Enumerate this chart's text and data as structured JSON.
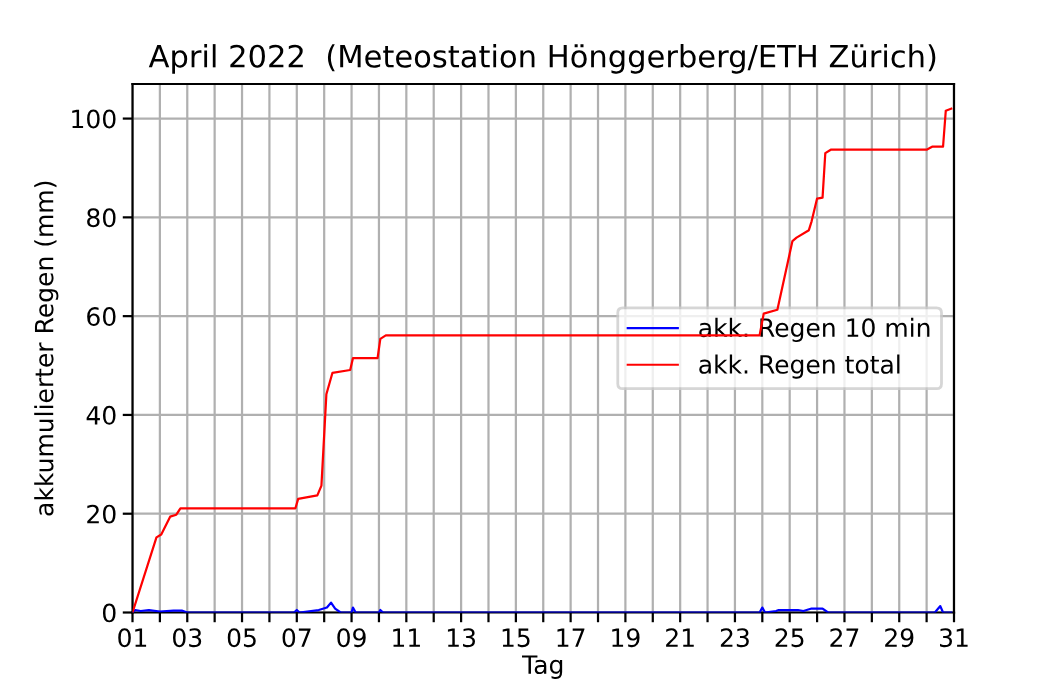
{
  "chart_data": {
    "type": "line",
    "title": "April 2022  (Meteostation Hönggerberg/ETH Zürich)",
    "xlabel": "Tag",
    "ylabel": "akkumulierter Regen (mm)",
    "series": [
      {
        "name": "akk. Regen 10 min",
        "color": "#0000ff",
        "x": [
          1.0,
          1.1,
          1.3,
          1.6,
          2.0,
          2.5,
          2.8,
          3.0,
          6.9,
          7.0,
          7.1,
          7.8,
          8.1,
          8.25,
          8.4,
          8.6,
          9.0,
          9.05,
          9.15,
          10.0,
          10.05,
          10.15,
          23.9,
          24.0,
          24.1,
          24.5,
          24.6,
          25.0,
          25.3,
          25.5,
          25.8,
          26.2,
          26.4,
          30.3,
          30.5,
          30.6,
          30.9
        ],
        "values": [
          0,
          0.5,
          0.3,
          0.5,
          0.2,
          0.4,
          0.4,
          0,
          0,
          0.5,
          0,
          0.5,
          1,
          2,
          0.8,
          0,
          0,
          1,
          0,
          0,
          0.5,
          0,
          0,
          1,
          0,
          0.3,
          0.5,
          0.5,
          0.5,
          0.3,
          0.8,
          0.8,
          0,
          0,
          1.3,
          0,
          0
        ]
      },
      {
        "name": "akk. Regen total",
        "color": "#ff0000",
        "x": [
          1.0,
          1.875,
          2.05,
          2.375,
          2.6,
          2.75,
          6.95,
          7.05,
          7.75,
          7.9,
          8.08,
          8.3,
          8.95,
          9.05,
          9.95,
          10.05,
          10.25,
          23.9,
          24.05,
          24.55,
          25.1,
          25.25,
          25.7,
          25.8,
          26.0,
          26.2,
          26.3,
          26.5,
          30.0,
          30.2,
          30.6,
          30.7,
          30.9
        ],
        "values": [
          0,
          15.2,
          15.8,
          19.4,
          19.8,
          21.1,
          21.1,
          23,
          23.7,
          25.7,
          44.2,
          48.5,
          49.1,
          51.5,
          51.5,
          55.4,
          56.1,
          56.1,
          60.5,
          61.3,
          75.2,
          75.9,
          77.4,
          79.2,
          83.8,
          84,
          93,
          93.7,
          93.7,
          94.3,
          94.3,
          101.6,
          102
        ]
      }
    ],
    "xlim": [
      1,
      31
    ],
    "xticks": [
      {
        "value": 1,
        "label": "01"
      },
      {
        "value": 2,
        "label": null
      },
      {
        "value": 3,
        "label": "03"
      },
      {
        "value": 4,
        "label": null
      },
      {
        "value": 5,
        "label": "05"
      },
      {
        "value": 6,
        "label": null
      },
      {
        "value": 7,
        "label": "07"
      },
      {
        "value": 8,
        "label": null
      },
      {
        "value": 9,
        "label": "09"
      },
      {
        "value": 10,
        "label": null
      },
      {
        "value": 11,
        "label": "11"
      },
      {
        "value": 12,
        "label": null
      },
      {
        "value": 13,
        "label": "13"
      },
      {
        "value": 14,
        "label": null
      },
      {
        "value": 15,
        "label": "15"
      },
      {
        "value": 16,
        "label": null
      },
      {
        "value": 17,
        "label": "17"
      },
      {
        "value": 18,
        "label": null
      },
      {
        "value": 19,
        "label": "19"
      },
      {
        "value": 20,
        "label": null
      },
      {
        "value": 21,
        "label": "21"
      },
      {
        "value": 22,
        "label": null
      },
      {
        "value": 23,
        "label": "23"
      },
      {
        "value": 24,
        "label": null
      },
      {
        "value": 25,
        "label": "25"
      },
      {
        "value": 26,
        "label": null
      },
      {
        "value": 27,
        "label": "27"
      },
      {
        "value": 28,
        "label": null
      },
      {
        "value": 29,
        "label": "29"
      },
      {
        "value": 30,
        "label": null
      },
      {
        "value": 31,
        "label": "31"
      }
    ],
    "ylim": [
      0,
      107
    ],
    "yticks": [
      0,
      20,
      40,
      60,
      80,
      100
    ],
    "grid": true,
    "legend": "right",
    "line_style": "solid",
    "marker": "none"
  }
}
